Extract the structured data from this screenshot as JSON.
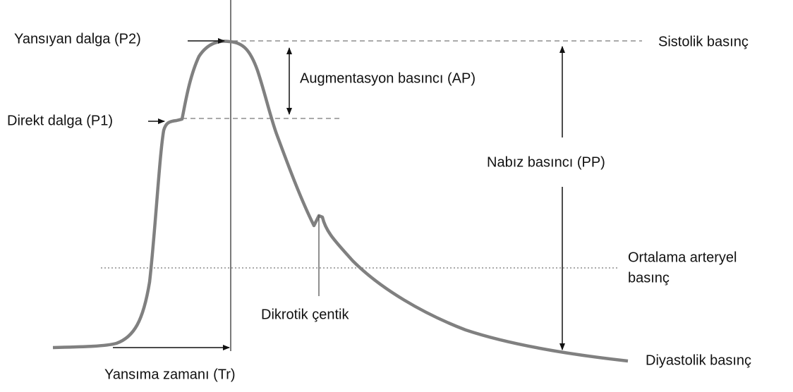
{
  "labels": {
    "reflected_wave": "Yansıyan dalga (P2)",
    "systolic": "Sistolik basınç",
    "augmentation": "Augmentasyon basıncı (AP)",
    "direct_wave": "Direkt dalga (P1)",
    "pulse_pressure": "Nabız basıncı (PP)",
    "mean_arterial": [
      "Ortalama arteryel",
      "basınç"
    ],
    "dicrotic_notch": "Dikrotik çentik",
    "reflection_time": "Yansıma zamanı (Tr)",
    "diastolic": "Diyastolik basınç"
  }
}
